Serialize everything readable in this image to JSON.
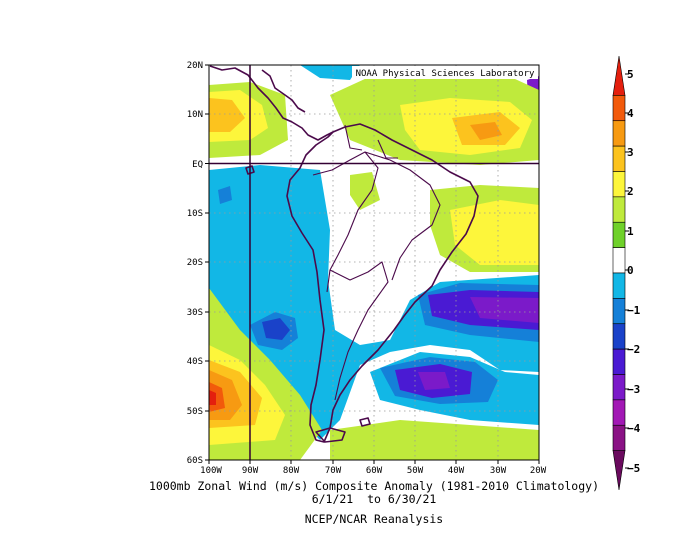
{
  "map": {
    "credit": "NOAA Physical Sciences Laboratory",
    "x_tick_labels": [
      "100W",
      "90W",
      "80W",
      "70W",
      "60W",
      "50W",
      "40W",
      "30W",
      "20W"
    ],
    "y_tick_labels": [
      "20N",
      "10N",
      "EQ",
      "10S",
      "20S",
      "30S",
      "40S",
      "50S",
      "60S"
    ],
    "title_line1": "1000mb Zonal Wind (m/s) Composite Anomaly (1981-2010 Climatology)",
    "title_line2": "6/1/21  to 6/30/21",
    "source": "NCEP/NCAR Reanalysis"
  },
  "colorbar": {
    "labels": [
      "5",
      "4",
      "3",
      "2",
      "1",
      "0",
      "−1",
      "−2",
      "−3",
      "−4",
      "−5"
    ],
    "colors": [
      "#e41f0e",
      "#f25a0b",
      "#f79a12",
      "#fcc31e",
      "#fdf63b",
      "#bfea3c",
      "#6fd12a",
      "#ffffff",
      "#12b7e6",
      "#1580d8",
      "#1a42c9",
      "#4a1ad3",
      "#7b1ac9",
      "#a218b5",
      "#8a1285",
      "#6a0a5e"
    ]
  },
  "colors": {
    "coast": "#4b0a4b",
    "grid": "#9a9a9a",
    "crosshair": "#330033"
  }
}
